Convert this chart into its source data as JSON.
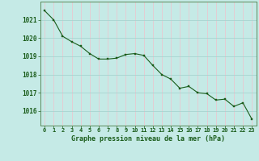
{
  "x": [
    0,
    1,
    2,
    3,
    4,
    5,
    6,
    7,
    8,
    9,
    10,
    11,
    12,
    13,
    14,
    15,
    16,
    17,
    18,
    19,
    20,
    21,
    22,
    23
  ],
  "y": [
    1021.5,
    1021.0,
    1020.1,
    1019.8,
    1019.55,
    1019.15,
    1018.85,
    1018.85,
    1018.9,
    1019.1,
    1019.15,
    1019.05,
    1018.5,
    1018.0,
    1017.75,
    1017.25,
    1017.35,
    1017.0,
    1016.95,
    1016.6,
    1016.65,
    1016.25,
    1016.45,
    1015.55
  ],
  "line_color": "#1a5c1a",
  "marker_color": "#1a5c1a",
  "bg_color": "#c5eae6",
  "grid_vertical_color": "#e8c8d0",
  "grid_horizontal_color": "#a8d4d0",
  "xlabel": "Graphe pression niveau de la mer (hPa)",
  "xlabel_color": "#1a5c1a",
  "tick_color": "#1a5c1a",
  "spine_color": "#5a8a5a",
  "ylim": [
    1015.2,
    1022.0
  ],
  "yticks": [
    1016,
    1017,
    1018,
    1019,
    1020,
    1021
  ],
  "xticks": [
    0,
    1,
    2,
    3,
    4,
    5,
    6,
    7,
    8,
    9,
    10,
    11,
    12,
    13,
    14,
    15,
    16,
    17,
    18,
    19,
    20,
    21,
    22,
    23
  ],
  "xtick_labels": [
    "0",
    "1",
    "2",
    "3",
    "4",
    "5",
    "6",
    "7",
    "8",
    "9",
    "10",
    "11",
    "12",
    "13",
    "14",
    "15",
    "16",
    "17",
    "18",
    "19",
    "20",
    "21",
    "22",
    "23"
  ]
}
